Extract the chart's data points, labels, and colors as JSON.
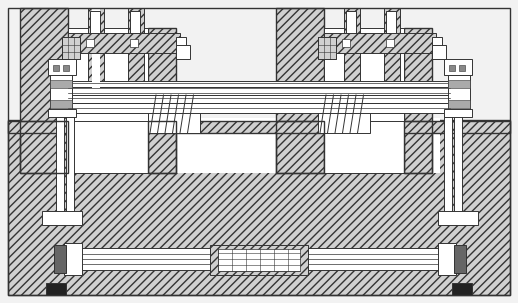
{
  "bg": "#f2f2f2",
  "lc": "#333333",
  "white": "#ffffff",
  "hfc": "#d0d0d0",
  "dark": "#222222",
  "lw": 0.7,
  "figsize": [
    5.18,
    3.03
  ],
  "dpi": 100
}
